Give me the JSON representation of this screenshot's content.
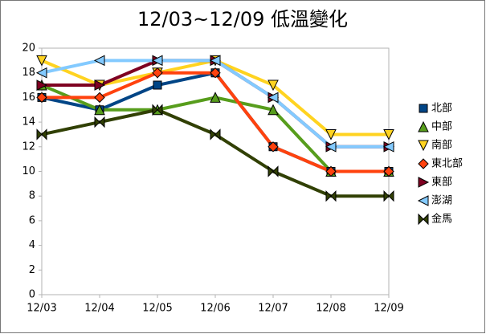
{
  "chart_data": {
    "type": "line",
    "title": "12/03~12/09 低溫變化",
    "categories": [
      "12/03",
      "12/04",
      "12/05",
      "12/06",
      "12/07",
      "12/08",
      "12/09"
    ],
    "series": [
      {
        "name": "北部",
        "color": "#004586",
        "marker": "square",
        "values": [
          16,
          15,
          17,
          18,
          12,
          10,
          10
        ]
      },
      {
        "name": "中部",
        "color": "#579d1c",
        "marker": "triangle-up",
        "values": [
          17,
          15,
          15,
          16,
          15,
          10,
          10
        ]
      },
      {
        "name": "南部",
        "color": "#ffd320",
        "marker": "triangle-down",
        "values": [
          19,
          17,
          18,
          19,
          17,
          13,
          13
        ]
      },
      {
        "name": "東北部",
        "color": "#ff420e",
        "marker": "diamond",
        "values": [
          16,
          16,
          18,
          18,
          12,
          10,
          10
        ]
      },
      {
        "name": "東部",
        "color": "#7e0021",
        "marker": "triangle-right",
        "values": [
          17,
          17,
          19,
          19,
          16,
          12,
          12
        ]
      },
      {
        "name": "澎湖",
        "color": "#83caff",
        "marker": "triangle-left",
        "values": [
          18,
          19,
          19,
          19,
          16,
          12,
          12
        ]
      },
      {
        "name": "金馬",
        "color": "#314004",
        "marker": "bowtie",
        "values": [
          13,
          14,
          15,
          13,
          10,
          8,
          8
        ]
      }
    ],
    "ylim": [
      0,
      20
    ],
    "yticks": [
      0,
      2,
      4,
      6,
      8,
      10,
      12,
      14,
      16,
      18,
      20
    ],
    "legend": "right"
  }
}
